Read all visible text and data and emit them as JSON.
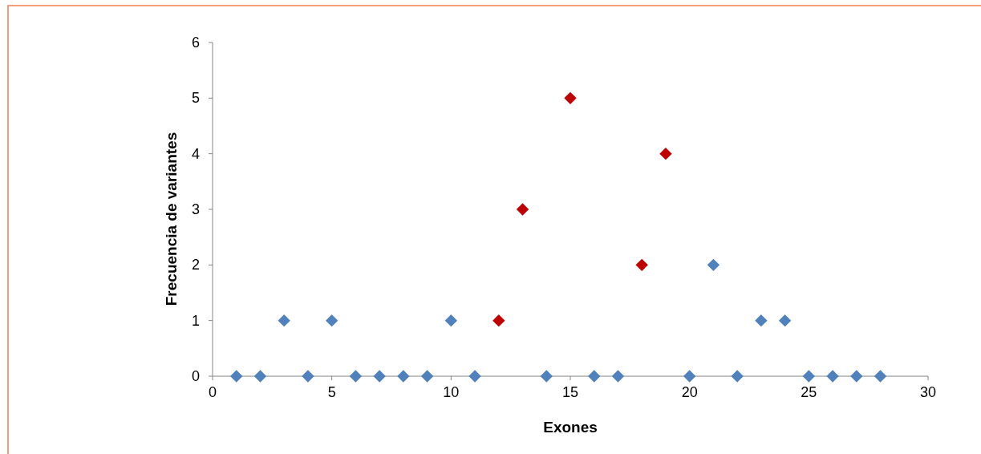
{
  "chart_data": {
    "type": "scatter",
    "xlabel": "Exones",
    "ylabel": "Frecuencia de variantes",
    "series": [
      {
        "color": "#4f81bd",
        "x": [
          1,
          2,
          3,
          4,
          5,
          6,
          7,
          8,
          9,
          10,
          11,
          14,
          16,
          17,
          20,
          21,
          22,
          23,
          24,
          25,
          26,
          27,
          28
        ],
        "values": [
          0,
          0,
          1,
          0,
          1,
          0,
          0,
          0,
          0,
          1,
          0,
          0,
          0,
          0,
          0,
          2,
          0,
          1,
          1,
          0,
          0,
          0,
          0
        ]
      },
      {
        "color": "#c00000",
        "x": [
          12,
          13,
          15,
          18,
          19
        ],
        "values": [
          1,
          3,
          5,
          2,
          4
        ]
      }
    ],
    "xlim": [
      0,
      30
    ],
    "xticks": [
      0,
      5,
      10,
      15,
      20,
      25,
      30
    ],
    "ylim": [
      0,
      6
    ],
    "yticks": [
      0,
      1,
      2,
      3,
      4,
      5,
      6
    ],
    "grid": false,
    "marker": "diamond"
  }
}
